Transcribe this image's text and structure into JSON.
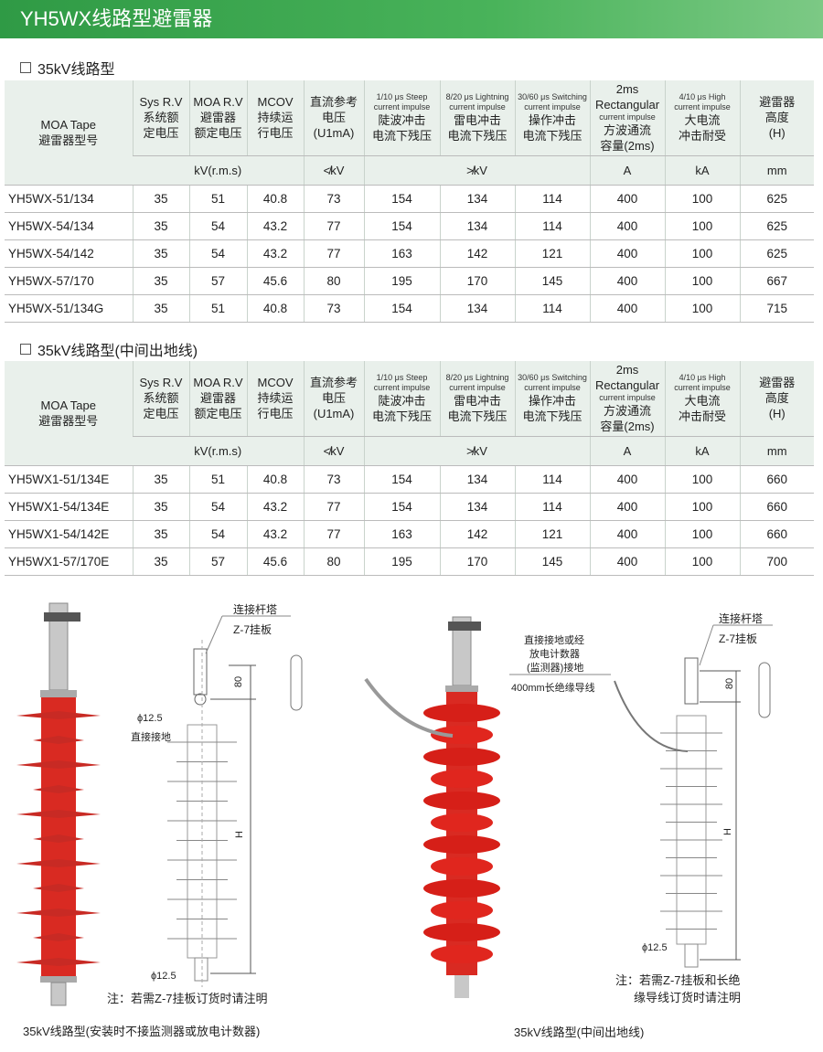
{
  "title": "YH5WX线路型避雷器",
  "headers": {
    "model": [
      "MOA Tape",
      "避雷器型号"
    ],
    "sys": [
      "Sys R.V",
      "系统额",
      "定电压"
    ],
    "moa": [
      "MOA R.V",
      "避雷器",
      "额定电压"
    ],
    "mcov": [
      "MCOV",
      "持续运",
      "行电压"
    ],
    "dc": [
      "直流参考",
      "电压",
      "(U1mA)"
    ],
    "steep": [
      "1/10 μs Steep",
      "current impulse",
      "陡波冲击",
      "电流下残压"
    ],
    "light": [
      "8/20 μs Lightning",
      "current impulse",
      "雷电冲击",
      "电流下残压"
    ],
    "switch": [
      "30/60 μs Switching",
      "current impulse",
      "操作冲击",
      "电流下残压"
    ],
    "rect": [
      "2ms Rectangular",
      "current impulse",
      "方波通流",
      "容量(2ms)"
    ],
    "high": [
      "4/10 μs High",
      "current impulse",
      "大电流",
      "冲击耐受"
    ],
    "height": [
      "避雷器",
      "高度",
      "(H)"
    ],
    "units": {
      "kv_rms": "kV(r.m.s)",
      "dc": "≮kV",
      "res": "≯kV",
      "a": "A",
      "ka": "kA",
      "mm": "mm"
    }
  },
  "tables": [
    {
      "title": "35kV线路型",
      "rows": [
        [
          "YH5WX-51/134",
          "35",
          "51",
          "40.8",
          "73",
          "154",
          "134",
          "114",
          "400",
          "100",
          "625"
        ],
        [
          "YH5WX-54/134",
          "35",
          "54",
          "43.2",
          "77",
          "154",
          "134",
          "114",
          "400",
          "100",
          "625"
        ],
        [
          "YH5WX-54/142",
          "35",
          "54",
          "43.2",
          "77",
          "163",
          "142",
          "121",
          "400",
          "100",
          "625"
        ],
        [
          "YH5WX-57/170",
          "35",
          "57",
          "45.6",
          "80",
          "195",
          "170",
          "145",
          "400",
          "100",
          "667"
        ],
        [
          "YH5WX-51/134G",
          "35",
          "51",
          "40.8",
          "73",
          "154",
          "134",
          "114",
          "400",
          "100",
          "715"
        ]
      ]
    },
    {
      "title": "35kV线路型(中间出地线)",
      "rows": [
        [
          "YH5WX1-51/134E",
          "35",
          "51",
          "40.8",
          "73",
          "154",
          "134",
          "114",
          "400",
          "100",
          "660"
        ],
        [
          "YH5WX1-54/134E",
          "35",
          "54",
          "43.2",
          "77",
          "154",
          "134",
          "114",
          "400",
          "100",
          "660"
        ],
        [
          "YH5WX1-54/142E",
          "35",
          "54",
          "43.2",
          "77",
          "163",
          "142",
          "121",
          "400",
          "100",
          "660"
        ],
        [
          "YH5WX1-57/170E",
          "35",
          "57",
          "45.6",
          "80",
          "195",
          "170",
          "145",
          "400",
          "100",
          "700"
        ]
      ]
    }
  ],
  "diagram_left": {
    "tower": "连接杆塔",
    "plate": "Z-7挂板",
    "dim80": "80",
    "phi_top": "ϕ12.5",
    "ground": "直接接地",
    "H": "H",
    "phi_bot": "ϕ12.5",
    "note": "注：若需Z-7挂板订货时请注明",
    "caption": "35kV线路型(安装时不接监测器或放电计数器)"
  },
  "diagram_right": {
    "tower": "连接杆塔",
    "plate": "Z-7挂板",
    "ground1": "直接接地或经",
    "ground2": "放电计数器",
    "ground3": "(监测器)接地",
    "wire": "400mm长绝缘导线",
    "dim80": "80",
    "H": "H",
    "phi_bot": "ϕ12.5",
    "note1": "注：若需Z-7挂板和长绝",
    "note2": "缘导线订货时请注明",
    "caption": "35kV线路型(中间出地线)"
  },
  "colors": {
    "brand_green": "#3aa64a",
    "arrester_red": "#d92a22",
    "header_bg": "#e9f0eb"
  }
}
